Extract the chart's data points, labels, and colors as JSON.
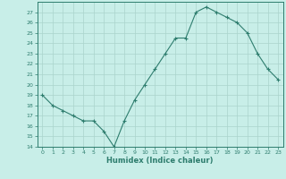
{
  "x": [
    0,
    1,
    2,
    3,
    4,
    5,
    6,
    7,
    8,
    9,
    10,
    11,
    12,
    13,
    14,
    15,
    16,
    17,
    18,
    19,
    20,
    21,
    22,
    23
  ],
  "y": [
    19,
    18,
    17.5,
    17,
    16.5,
    16.5,
    15.5,
    14,
    16.5,
    18.5,
    20,
    21.5,
    23,
    24.5,
    24.5,
    27,
    27.5,
    27,
    26.5,
    26,
    25,
    23,
    21.5,
    20.5
  ],
  "line_color": "#2e7d6e",
  "marker_color": "#2e7d6e",
  "bg_color": "#c8eee8",
  "grid_color": "#aad4cc",
  "axis_color": "#2e7d6e",
  "xlabel": "Humidex (Indice chaleur)",
  "ylim": [
    14,
    28
  ],
  "xlim": [
    -0.5,
    23.5
  ],
  "yticks": [
    14,
    15,
    16,
    17,
    18,
    19,
    20,
    21,
    22,
    23,
    24,
    25,
    26,
    27
  ],
  "xticks": [
    0,
    1,
    2,
    3,
    4,
    5,
    6,
    7,
    8,
    9,
    10,
    11,
    12,
    13,
    14,
    15,
    16,
    17,
    18,
    19,
    20,
    21,
    22,
    23
  ]
}
